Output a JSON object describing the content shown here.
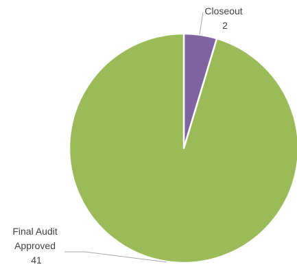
{
  "chart_data": {
    "type": "pie",
    "slices": [
      {
        "label": "Closeout",
        "value": 2,
        "color": "#8064a2"
      },
      {
        "label": "Final Audit Approved",
        "value": 41,
        "color": "#9bbb59"
      }
    ],
    "label_lines": {
      "closeout": [
        "Closeout",
        "2"
      ],
      "final": [
        "Final Audit",
        "Approved",
        "41"
      ]
    },
    "legend": "none"
  }
}
